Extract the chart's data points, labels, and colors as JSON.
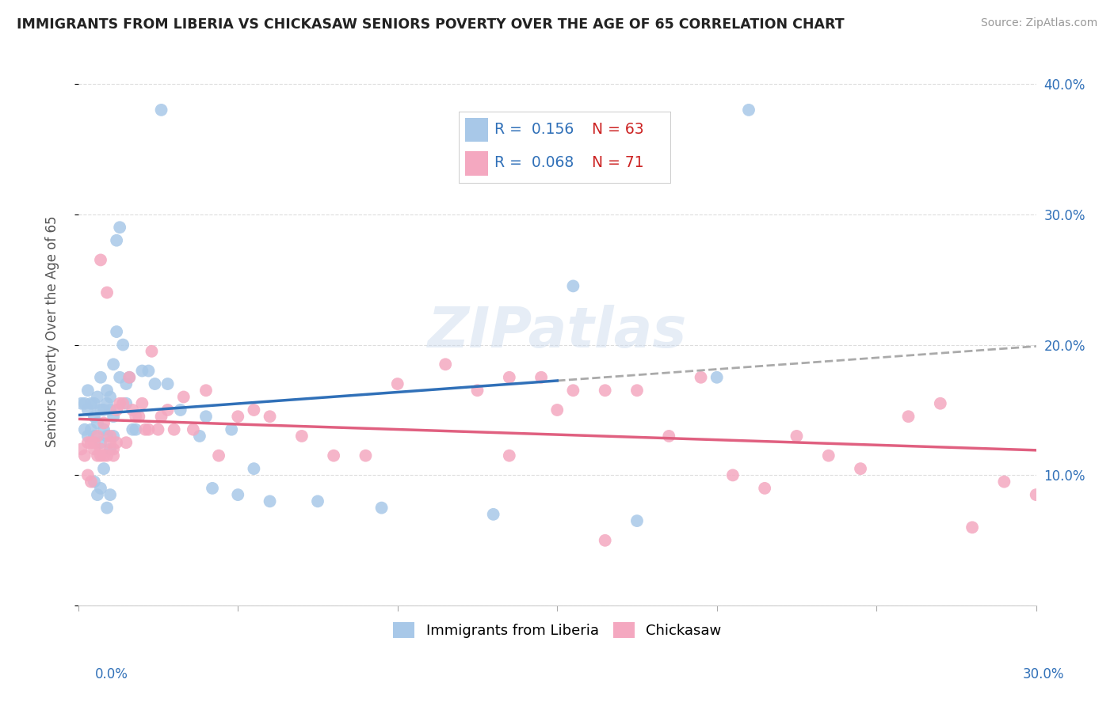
{
  "title": "IMMIGRANTS FROM LIBERIA VS CHICKASAW SENIORS POVERTY OVER THE AGE OF 65 CORRELATION CHART",
  "source": "Source: ZipAtlas.com",
  "ylabel": "Seniors Poverty Over the Age of 65",
  "legend_blue_R": "0.156",
  "legend_blue_N": "63",
  "legend_pink_R": "0.068",
  "legend_pink_N": "71",
  "blue_scatter_color": "#a8c8e8",
  "pink_scatter_color": "#f4a8c0",
  "blue_line_color": "#3070b8",
  "pink_line_color": "#e06080",
  "dashed_line_color": "#aaaaaa",
  "xlim": [
    0.0,
    0.3
  ],
  "ylim": [
    0.0,
    0.42
  ],
  "blue_scatter_x": [
    0.001,
    0.002,
    0.002,
    0.003,
    0.003,
    0.003,
    0.004,
    0.004,
    0.005,
    0.005,
    0.005,
    0.005,
    0.006,
    0.006,
    0.006,
    0.007,
    0.007,
    0.007,
    0.007,
    0.008,
    0.008,
    0.008,
    0.009,
    0.009,
    0.009,
    0.009,
    0.01,
    0.01,
    0.01,
    0.01,
    0.011,
    0.011,
    0.011,
    0.012,
    0.012,
    0.013,
    0.013,
    0.014,
    0.015,
    0.015,
    0.016,
    0.017,
    0.018,
    0.02,
    0.022,
    0.024,
    0.026,
    0.028,
    0.032,
    0.038,
    0.042,
    0.048,
    0.05,
    0.06,
    0.075,
    0.095,
    0.13,
    0.155,
    0.175,
    0.2,
    0.21,
    0.04,
    0.055
  ],
  "blue_scatter_y": [
    0.155,
    0.135,
    0.155,
    0.15,
    0.165,
    0.13,
    0.135,
    0.155,
    0.145,
    0.155,
    0.13,
    0.095,
    0.16,
    0.14,
    0.085,
    0.175,
    0.15,
    0.125,
    0.09,
    0.15,
    0.135,
    0.105,
    0.165,
    0.155,
    0.13,
    0.075,
    0.16,
    0.15,
    0.12,
    0.085,
    0.185,
    0.145,
    0.13,
    0.28,
    0.21,
    0.29,
    0.175,
    0.2,
    0.17,
    0.155,
    0.175,
    0.135,
    0.135,
    0.18,
    0.18,
    0.17,
    0.38,
    0.17,
    0.15,
    0.13,
    0.09,
    0.135,
    0.085,
    0.08,
    0.08,
    0.075,
    0.07,
    0.245,
    0.065,
    0.175,
    0.38,
    0.145,
    0.105
  ],
  "pink_scatter_x": [
    0.001,
    0.002,
    0.003,
    0.003,
    0.004,
    0.004,
    0.005,
    0.005,
    0.006,
    0.006,
    0.007,
    0.007,
    0.007,
    0.008,
    0.008,
    0.009,
    0.009,
    0.01,
    0.01,
    0.011,
    0.011,
    0.012,
    0.012,
    0.013,
    0.014,
    0.015,
    0.016,
    0.017,
    0.018,
    0.019,
    0.02,
    0.021,
    0.022,
    0.023,
    0.025,
    0.026,
    0.028,
    0.03,
    0.033,
    0.036,
    0.04,
    0.044,
    0.05,
    0.055,
    0.06,
    0.07,
    0.08,
    0.09,
    0.1,
    0.115,
    0.125,
    0.135,
    0.145,
    0.155,
    0.165,
    0.175,
    0.185,
    0.195,
    0.205,
    0.215,
    0.225,
    0.235,
    0.245,
    0.26,
    0.27,
    0.28,
    0.29,
    0.3,
    0.135,
    0.15,
    0.165
  ],
  "pink_scatter_y": [
    0.12,
    0.115,
    0.125,
    0.1,
    0.125,
    0.095,
    0.12,
    0.125,
    0.115,
    0.13,
    0.265,
    0.12,
    0.115,
    0.14,
    0.115,
    0.24,
    0.115,
    0.13,
    0.125,
    0.115,
    0.12,
    0.15,
    0.125,
    0.155,
    0.155,
    0.125,
    0.175,
    0.15,
    0.145,
    0.145,
    0.155,
    0.135,
    0.135,
    0.195,
    0.135,
    0.145,
    0.15,
    0.135,
    0.16,
    0.135,
    0.165,
    0.115,
    0.145,
    0.15,
    0.145,
    0.13,
    0.115,
    0.115,
    0.17,
    0.185,
    0.165,
    0.175,
    0.175,
    0.165,
    0.165,
    0.165,
    0.13,
    0.175,
    0.1,
    0.09,
    0.13,
    0.115,
    0.105,
    0.145,
    0.155,
    0.06,
    0.095,
    0.085,
    0.115,
    0.15,
    0.05
  ],
  "ytick_positions": [
    0.0,
    0.1,
    0.2,
    0.3,
    0.4
  ],
  "ytick_labels_right": [
    "",
    "10.0%",
    "20.0%",
    "30.0%",
    "40.0%"
  ],
  "background_color": "#ffffff",
  "grid_color": "#dddddd",
  "label_color_blue": "#3070b8",
  "label_color_red": "#cc2222",
  "axis_label_color": "#555555"
}
